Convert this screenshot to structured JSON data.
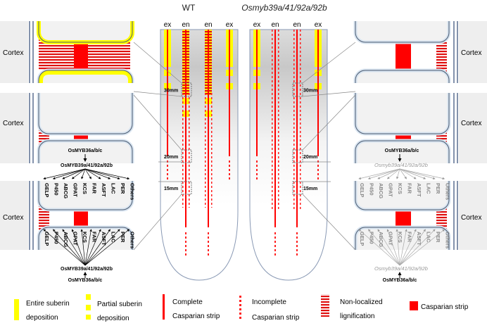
{
  "titles": {
    "wt": "WT",
    "mutant": "Osmyb39a/41/92a/92b"
  },
  "column_labels": {
    "ex": "ex",
    "en": "en"
  },
  "tissue_label": "Cortex",
  "distance_markers": [
    "30mm",
    "20mm",
    "15mm"
  ],
  "regulators": {
    "upstream": "OsMYB36a/b/c",
    "wt_mid": "OsMYB39a/41/92a/92b",
    "mutant_mid": "Osmyb39a/41/92a/92b"
  },
  "genes": [
    "GELP",
    "P450",
    "ABCG",
    "GPAT",
    "KCS",
    "FAR",
    "ASFT",
    "LAC",
    "PER",
    "Others"
  ],
  "legend": {
    "entire_suberin": [
      "Entire suberin",
      "deposition"
    ],
    "partial_suberin": [
      "Partial suberin",
      "deposition"
    ],
    "complete_cs": [
      "Complete",
      "Casparian strip"
    ],
    "incomplete_cs": [
      "Incomplete",
      "Casparian strip"
    ],
    "nonlocal_lig": [
      "Non-localized",
      "lignification"
    ],
    "casparian": "Casparian strip"
  },
  "colors": {
    "suberin": "#ffff00",
    "casparian": "#ff0000",
    "cell_border": "#4a5a70",
    "cell_fill": "#f2f2f2",
    "cortex": "#eeeeee"
  }
}
